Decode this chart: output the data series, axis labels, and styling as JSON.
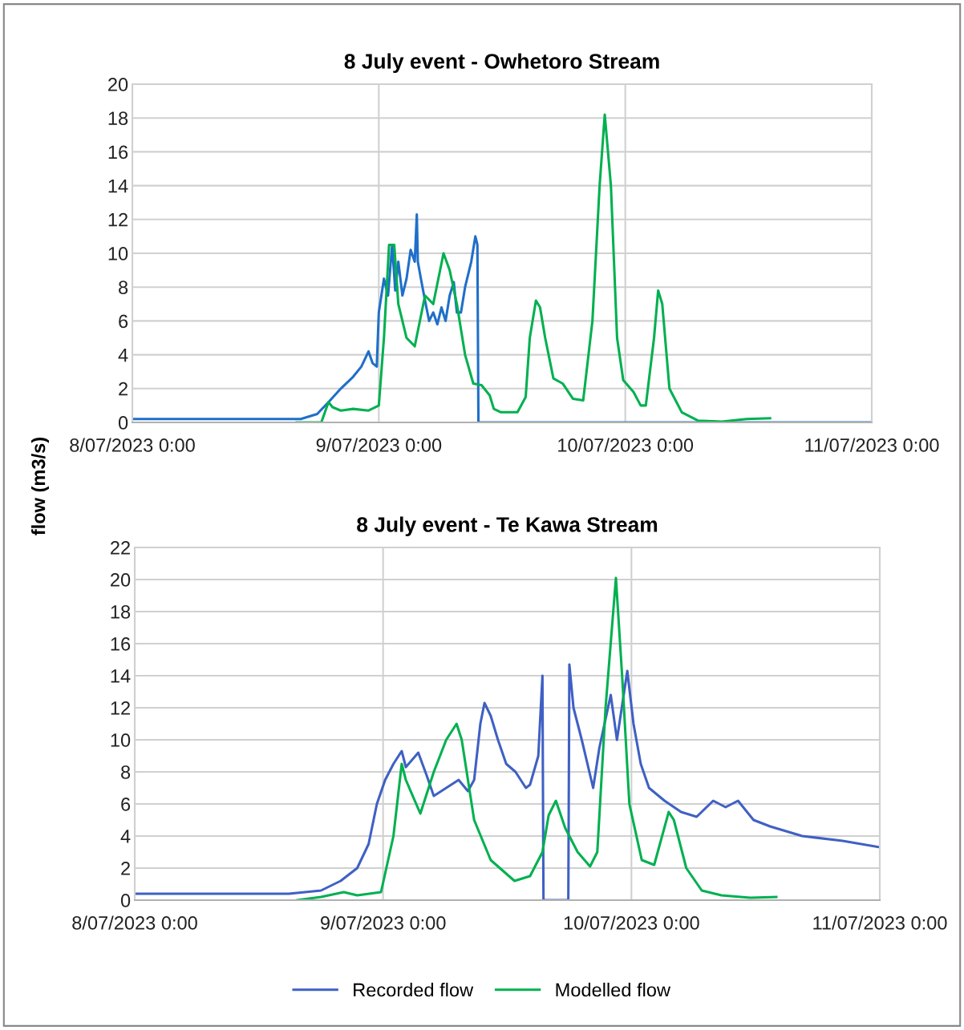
{
  "chart_data": [
    {
      "type": "line",
      "title": "8 July event - Owhetoro Stream",
      "ylabel": "flow (m3/s)",
      "grid": true,
      "legend": false,
      "xlim": [
        "2023-07-08T00:00",
        "2023-07-11T00:00"
      ],
      "xticks": [
        {
          "value": "2023-07-08T00:00",
          "label": "8/07/2023 0:00"
        },
        {
          "value": "2023-07-09T00:00",
          "label": "9/07/2023 0:00"
        },
        {
          "value": "2023-07-10T00:00",
          "label": "10/07/2023 0:00"
        },
        {
          "value": "2023-07-11T00:00",
          "label": "11/07/2023 0:00"
        }
      ],
      "ylim": [
        0,
        20
      ],
      "yticks": [
        0,
        2,
        4,
        6,
        8,
        10,
        12,
        14,
        16,
        18,
        20
      ],
      "series": [
        {
          "color": "#1f6fc9",
          "x": [
            "2023-07-08T00:00",
            "2023-07-08T16:24",
            "2023-07-08T18:00",
            "2023-07-08T19:06",
            "2023-07-08T20:18",
            "2023-07-08T21:30",
            "2023-07-08T22:18",
            "2023-07-08T23:00",
            "2023-07-08T23:24",
            "2023-07-08T23:48",
            "2023-07-09T00:00",
            "2023-07-09T00:30",
            "2023-07-09T00:54",
            "2023-07-09T01:18",
            "2023-07-09T01:36",
            "2023-07-09T01:54",
            "2023-07-09T02:18",
            "2023-07-09T02:42",
            "2023-07-09T03:06",
            "2023-07-09T03:30",
            "2023-07-09T03:42",
            "2023-07-09T03:48",
            "2023-07-09T04:06",
            "2023-07-09T04:30",
            "2023-07-09T04:54",
            "2023-07-09T05:18",
            "2023-07-09T05:42",
            "2023-07-09T06:06",
            "2023-07-09T06:30",
            "2023-07-09T06:54",
            "2023-07-09T07:18",
            "2023-07-09T07:36",
            "2023-07-09T08:00",
            "2023-07-09T08:24",
            "2023-07-09T09:00",
            "2023-07-09T09:24",
            "2023-07-09T09:36",
            "2023-07-09T09:42",
            "2023-07-11T00:00"
          ],
          "values": [
            0.2,
            0.2,
            0.5,
            1.2,
            2,
            2.7,
            3.3,
            4.2,
            3.5,
            3.3,
            6.5,
            8.5,
            7.5,
            10.5,
            7.8,
            9.5,
            7.5,
            8.5,
            10.2,
            9.5,
            12.3,
            9.5,
            8.5,
            7.2,
            6,
            6.5,
            5.8,
            6.8,
            6,
            7.5,
            8.3,
            6.5,
            6.5,
            8,
            9.5,
            11,
            10.5,
            0,
            0
          ]
        },
        {
          "color": "#00b050",
          "x": [
            "2023-07-08T16:00",
            "2023-07-08T18:24",
            "2023-07-08T19:06",
            "2023-07-08T19:30",
            "2023-07-08T20:18",
            "2023-07-08T21:30",
            "2023-07-08T23:00",
            "2023-07-09T00:00",
            "2023-07-09T00:30",
            "2023-07-09T01:00",
            "2023-07-09T01:30",
            "2023-07-09T01:54",
            "2023-07-09T02:42",
            "2023-07-09T03:30",
            "2023-07-09T04:30",
            "2023-07-09T05:18",
            "2023-07-09T06:18",
            "2023-07-09T06:54",
            "2023-07-09T07:36",
            "2023-07-09T08:24",
            "2023-07-09T09:12",
            "2023-07-09T10:00",
            "2023-07-09T10:48",
            "2023-07-09T11:12",
            "2023-07-09T11:54",
            "2023-07-09T13:30",
            "2023-07-09T14:18",
            "2023-07-09T14:42",
            "2023-07-09T15:18",
            "2023-07-09T15:42",
            "2023-07-09T16:12",
            "2023-07-09T17:00",
            "2023-07-09T17:54",
            "2023-07-09T18:54",
            "2023-07-09T19:54",
            "2023-07-09T20:48",
            "2023-07-09T21:30",
            "2023-07-09T22:00",
            "2023-07-09T22:36",
            "2023-07-09T23:12",
            "2023-07-09T23:48",
            "2023-07-10T00:48",
            "2023-07-10T01:30",
            "2023-07-10T02:00",
            "2023-07-10T02:48",
            "2023-07-10T03:12",
            "2023-07-10T03:36",
            "2023-07-10T04:18",
            "2023-07-10T05:30",
            "2023-07-10T07:06",
            "2023-07-10T09:24",
            "2023-07-10T11:48",
            "2023-07-10T14:06"
          ],
          "values": [
            0,
            0,
            1.2,
            0.9,
            0.7,
            0.8,
            0.7,
            1,
            5,
            10.5,
            10.5,
            7,
            5,
            4.5,
            7.5,
            7,
            10,
            9,
            7,
            4,
            2.3,
            2.2,
            1.6,
            0.8,
            0.6,
            0.6,
            1.5,
            5,
            7.2,
            6.8,
            5,
            2.6,
            2.3,
            1.4,
            1.3,
            6,
            14,
            18.2,
            14,
            5,
            2.5,
            1.8,
            1,
            1,
            5,
            7.8,
            7,
            2,
            0.6,
            0.1,
            0.05,
            0.2,
            0.25
          ]
        }
      ]
    },
    {
      "type": "line",
      "title": "8 July event - Te Kawa Stream",
      "grid": true,
      "legend": "bottom",
      "xlim": [
        "2023-07-08T00:00",
        "2023-07-11T00:00"
      ],
      "xticks": [
        {
          "value": "2023-07-08T00:00",
          "label": "8/07/2023 0:00"
        },
        {
          "value": "2023-07-09T00:00",
          "label": "9/07/2023 0:00"
        },
        {
          "value": "2023-07-10T00:00",
          "label": "10/07/2023 0:00"
        },
        {
          "value": "2023-07-11T00:00",
          "label": "11/07/2023 0:00"
        }
      ],
      "ylim": [
        0,
        22
      ],
      "yticks": [
        0,
        2,
        4,
        6,
        8,
        10,
        12,
        14,
        16,
        18,
        20,
        22
      ],
      "series": [
        {
          "name": "Recorded flow",
          "color": "#3f60c4",
          "x": [
            "2023-07-08T00:00",
            "2023-07-08T14:54",
            "2023-07-08T18:00",
            "2023-07-08T19:54",
            "2023-07-08T21:30",
            "2023-07-08T22:36",
            "2023-07-08T23:24",
            "2023-07-09T00:12",
            "2023-07-09T01:00",
            "2023-07-09T01:48",
            "2023-07-09T02:12",
            "2023-07-09T03:24",
            "2023-07-09T04:12",
            "2023-07-09T04:54",
            "2023-07-09T06:06",
            "2023-07-09T07:18",
            "2023-07-09T08:12",
            "2023-07-09T08:48",
            "2023-07-09T09:24",
            "2023-07-09T09:48",
            "2023-07-09T10:24",
            "2023-07-09T11:06",
            "2023-07-09T11:54",
            "2023-07-09T12:48",
            "2023-07-09T13:48",
            "2023-07-09T14:12",
            "2023-07-09T15:00",
            "2023-07-09T15:24",
            "2023-07-09T15:30",
            "2023-07-09T17:54",
            "2023-07-09T18:00",
            "2023-07-09T18:24",
            "2023-07-09T19:12",
            "2023-07-09T20:18",
            "2023-07-09T20:54",
            "2023-07-09T22:00",
            "2023-07-09T22:36",
            "2023-07-09T23:36",
            "2023-07-10T00:12",
            "2023-07-10T00:54",
            "2023-07-10T01:42",
            "2023-07-10T03:12",
            "2023-07-10T04:48",
            "2023-07-10T06:18",
            "2023-07-10T07:54",
            "2023-07-10T09:06",
            "2023-07-10T10:18",
            "2023-07-10T11:48",
            "2023-07-10T13:24",
            "2023-07-10T16:30",
            "2023-07-10T20:24",
            "2023-07-11T00:00"
          ],
          "values": [
            0.4,
            0.4,
            0.6,
            1.2,
            2,
            3.5,
            6,
            7.5,
            8.5,
            9.3,
            8.3,
            9.2,
            7.8,
            6.5,
            7,
            7.5,
            6.8,
            7.5,
            11,
            12.3,
            11.5,
            10,
            8.5,
            8,
            7,
            7.2,
            9,
            14,
            0,
            0,
            14.7,
            12,
            10,
            7,
            9.5,
            12.8,
            10,
            14.3,
            11,
            8.5,
            7,
            6.2,
            5.5,
            5.2,
            6.2,
            5.8,
            6.2,
            5,
            4.6,
            4,
            3.7,
            3.3
          ]
        },
        {
          "name": "Modelled flow",
          "color": "#00b050",
          "x": [
            "2023-07-08T15:42",
            "2023-07-08T18:00",
            "2023-07-08T20:12",
            "2023-07-08T21:30",
            "2023-07-08T23:48",
            "2023-07-09T01:00",
            "2023-07-09T01:48",
            "2023-07-09T02:12",
            "2023-07-09T03:36",
            "2023-07-09T04:54",
            "2023-07-09T06:06",
            "2023-07-09T07:06",
            "2023-07-09T07:36",
            "2023-07-09T08:48",
            "2023-07-09T10:24",
            "2023-07-09T12:42",
            "2023-07-09T14:12",
            "2023-07-09T15:24",
            "2023-07-09T16:00",
            "2023-07-09T16:42",
            "2023-07-09T17:36",
            "2023-07-09T18:48",
            "2023-07-09T20:00",
            "2023-07-09T20:42",
            "2023-07-09T21:30",
            "2023-07-09T22:30",
            "2023-07-09T23:06",
            "2023-07-09T23:48",
            "2023-07-10T01:00",
            "2023-07-10T02:12",
            "2023-07-10T03:36",
            "2023-07-10T04:06",
            "2023-07-10T05:18",
            "2023-07-10T06:48",
            "2023-07-10T08:42",
            "2023-07-10T11:30",
            "2023-07-10T14:00"
          ],
          "values": [
            0,
            0.2,
            0.5,
            0.3,
            0.5,
            4,
            8.5,
            7.5,
            5.4,
            8,
            10,
            11,
            10,
            5,
            2.5,
            1.2,
            1.5,
            3,
            5.3,
            6.2,
            4.5,
            3,
            2.1,
            3,
            12,
            20.1,
            14,
            6,
            2.5,
            2.2,
            5.5,
            5,
            2,
            0.6,
            0.3,
            0.15,
            0.2
          ]
        }
      ]
    }
  ]
}
